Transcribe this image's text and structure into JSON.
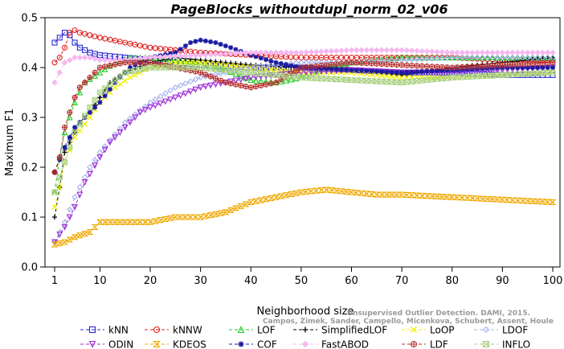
{
  "chart_data": {
    "type": "line",
    "title": "PageBlocks_withoutdupl_norm_02_v06",
    "xlabel": "Neighborhood size",
    "ylabel": "Maximum F1",
    "xlim": [
      1,
      100
    ],
    "ylim": [
      0.0,
      0.5
    ],
    "x_ticks": [
      1,
      10,
      20,
      30,
      40,
      50,
      60,
      70,
      80,
      90,
      100
    ],
    "y_ticks": [
      0.0,
      0.1,
      0.2,
      0.3,
      0.4,
      0.5
    ],
    "y_tick_labels": [
      "0.0",
      "0.1",
      "0.2",
      "0.3",
      "0.4",
      "0.5"
    ],
    "grid": false,
    "legend_position": "bottom",
    "series": [
      {
        "name": "kNN",
        "color": "#2b2bd6",
        "marker": "square",
        "dash": "4,3",
        "points": [
          [
            1,
            0.45
          ],
          [
            2,
            0.46
          ],
          [
            3,
            0.47
          ],
          [
            4,
            0.465
          ],
          [
            5,
            0.45
          ],
          [
            6,
            0.44
          ],
          [
            8,
            0.43
          ],
          [
            10,
            0.425
          ],
          [
            15,
            0.42
          ],
          [
            20,
            0.415
          ],
          [
            25,
            0.41
          ],
          [
            30,
            0.405
          ],
          [
            40,
            0.4
          ],
          [
            50,
            0.4
          ],
          [
            60,
            0.395
          ],
          [
            70,
            0.39
          ],
          [
            80,
            0.39
          ],
          [
            90,
            0.385
          ],
          [
            100,
            0.385
          ]
        ]
      },
      {
        "name": "kNNW",
        "color": "#e02020",
        "marker": "circle",
        "dash": "4,3",
        "points": [
          [
            1,
            0.41
          ],
          [
            2,
            0.42
          ],
          [
            3,
            0.44
          ],
          [
            4,
            0.47
          ],
          [
            5,
            0.475
          ],
          [
            6,
            0.47
          ],
          [
            8,
            0.465
          ],
          [
            10,
            0.46
          ],
          [
            15,
            0.45
          ],
          [
            20,
            0.44
          ],
          [
            25,
            0.435
          ],
          [
            30,
            0.43
          ],
          [
            40,
            0.425
          ],
          [
            50,
            0.42
          ],
          [
            60,
            0.42
          ],
          [
            70,
            0.42
          ],
          [
            80,
            0.42
          ],
          [
            90,
            0.415
          ],
          [
            100,
            0.415
          ]
        ]
      },
      {
        "name": "LOF",
        "color": "#22cc22",
        "marker": "triangle",
        "dash": "4,3",
        "points": [
          [
            1,
            0.15
          ],
          [
            2,
            0.22
          ],
          [
            3,
            0.27
          ],
          [
            5,
            0.33
          ],
          [
            7,
            0.37
          ],
          [
            10,
            0.39
          ],
          [
            13,
            0.41
          ],
          [
            16,
            0.42
          ],
          [
            20,
            0.42
          ],
          [
            25,
            0.415
          ],
          [
            30,
            0.41
          ],
          [
            35,
            0.395
          ],
          [
            40,
            0.375
          ],
          [
            45,
            0.37
          ],
          [
            50,
            0.38
          ],
          [
            55,
            0.4
          ],
          [
            60,
            0.41
          ],
          [
            70,
            0.42
          ],
          [
            80,
            0.42
          ],
          [
            90,
            0.42
          ],
          [
            100,
            0.42
          ]
        ]
      },
      {
        "name": "SimplifiedLOF",
        "color": "#000000",
        "marker": "plus",
        "dash": "4,3",
        "points": [
          [
            1,
            0.1
          ],
          [
            2,
            0.16
          ],
          [
            3,
            0.23
          ],
          [
            4,
            0.25
          ],
          [
            6,
            0.29
          ],
          [
            8,
            0.31
          ],
          [
            10,
            0.34
          ],
          [
            12,
            0.37
          ],
          [
            15,
            0.39
          ],
          [
            20,
            0.41
          ],
          [
            25,
            0.42
          ],
          [
            30,
            0.415
          ],
          [
            35,
            0.41
          ],
          [
            40,
            0.405
          ],
          [
            50,
            0.4
          ],
          [
            55,
            0.4
          ],
          [
            60,
            0.395
          ],
          [
            65,
            0.39
          ],
          [
            70,
            0.385
          ],
          [
            80,
            0.4
          ],
          [
            90,
            0.41
          ],
          [
            100,
            0.42
          ]
        ]
      },
      {
        "name": "LoOP",
        "color": "#f0f000",
        "marker": "cross",
        "dash": "4,3",
        "points": [
          [
            1,
            0.12
          ],
          [
            2,
            0.16
          ],
          [
            3,
            0.21
          ],
          [
            5,
            0.26
          ],
          [
            8,
            0.3
          ],
          [
            10,
            0.33
          ],
          [
            13,
            0.36
          ],
          [
            16,
            0.38
          ],
          [
            20,
            0.4
          ],
          [
            25,
            0.41
          ],
          [
            30,
            0.41
          ],
          [
            40,
            0.4
          ],
          [
            50,
            0.39
          ],
          [
            60,
            0.39
          ],
          [
            70,
            0.38
          ],
          [
            80,
            0.38
          ],
          [
            90,
            0.385
          ],
          [
            100,
            0.39
          ]
        ]
      },
      {
        "name": "LDOF",
        "color": "#aab4f0",
        "marker": "diamond",
        "dash": "4,3",
        "points": [
          [
            1,
            0.05
          ],
          [
            3,
            0.09
          ],
          [
            5,
            0.14
          ],
          [
            8,
            0.2
          ],
          [
            10,
            0.23
          ],
          [
            15,
            0.29
          ],
          [
            20,
            0.33
          ],
          [
            25,
            0.36
          ],
          [
            30,
            0.38
          ],
          [
            35,
            0.39
          ],
          [
            40,
            0.4
          ],
          [
            50,
            0.41
          ],
          [
            60,
            0.41
          ],
          [
            70,
            0.415
          ],
          [
            80,
            0.42
          ],
          [
            90,
            0.42
          ],
          [
            100,
            0.42
          ]
        ]
      },
      {
        "name": "ODIN",
        "color": "#9a2ad6",
        "marker": "triangle-down",
        "dash": "4,3",
        "points": [
          [
            1,
            0.05
          ],
          [
            3,
            0.08
          ],
          [
            5,
            0.12
          ],
          [
            7,
            0.17
          ],
          [
            10,
            0.22
          ],
          [
            12,
            0.25
          ],
          [
            15,
            0.28
          ],
          [
            18,
            0.31
          ],
          [
            20,
            0.32
          ],
          [
            25,
            0.34
          ],
          [
            30,
            0.36
          ],
          [
            35,
            0.37
          ],
          [
            40,
            0.38
          ],
          [
            50,
            0.39
          ],
          [
            60,
            0.395
          ],
          [
            70,
            0.39
          ],
          [
            80,
            0.39
          ],
          [
            90,
            0.395
          ],
          [
            100,
            0.4
          ]
        ]
      },
      {
        "name": "KDEOS",
        "color": "#f0a800",
        "marker": "hourglass",
        "dash": "4,3",
        "points": [
          [
            1,
            0.045
          ],
          [
            3,
            0.05
          ],
          [
            5,
            0.06
          ],
          [
            8,
            0.07
          ],
          [
            10,
            0.09
          ],
          [
            15,
            0.09
          ],
          [
            20,
            0.09
          ],
          [
            25,
            0.1
          ],
          [
            30,
            0.1
          ],
          [
            35,
            0.11
          ],
          [
            40,
            0.13
          ],
          [
            45,
            0.14
          ],
          [
            50,
            0.15
          ],
          [
            55,
            0.155
          ],
          [
            60,
            0.15
          ],
          [
            65,
            0.145
          ],
          [
            70,
            0.145
          ],
          [
            80,
            0.14
          ],
          [
            90,
            0.135
          ],
          [
            100,
            0.13
          ]
        ]
      },
      {
        "name": "COF",
        "color": "#1a1aa0",
        "marker": "star",
        "dash": "4,3",
        "points": [
          [
            1,
            0.19
          ],
          [
            3,
            0.24
          ],
          [
            5,
            0.28
          ],
          [
            7,
            0.3
          ],
          [
            10,
            0.33
          ],
          [
            13,
            0.37
          ],
          [
            16,
            0.4
          ],
          [
            20,
            0.42
          ],
          [
            25,
            0.43
          ],
          [
            28,
            0.45
          ],
          [
            30,
            0.455
          ],
          [
            33,
            0.45
          ],
          [
            36,
            0.44
          ],
          [
            40,
            0.425
          ],
          [
            45,
            0.41
          ],
          [
            50,
            0.4
          ],
          [
            60,
            0.395
          ],
          [
            70,
            0.39
          ],
          [
            80,
            0.395
          ],
          [
            90,
            0.4
          ],
          [
            100,
            0.4
          ]
        ]
      },
      {
        "name": "FastABOD",
        "color": "#f5b8f0",
        "marker": "diamond-filled",
        "dash": "4,3",
        "points": [
          [
            1,
            0.37
          ],
          [
            3,
            0.41
          ],
          [
            5,
            0.42
          ],
          [
            8,
            0.42
          ],
          [
            10,
            0.415
          ],
          [
            15,
            0.415
          ],
          [
            20,
            0.42
          ],
          [
            30,
            0.425
          ],
          [
            40,
            0.43
          ],
          [
            50,
            0.43
          ],
          [
            60,
            0.435
          ],
          [
            70,
            0.435
          ],
          [
            80,
            0.43
          ],
          [
            90,
            0.43
          ],
          [
            100,
            0.43
          ]
        ]
      },
      {
        "name": "LDF",
        "color": "#b83030",
        "marker": "circle-plus",
        "dash": "4,3",
        "points": [
          [
            1,
            0.19
          ],
          [
            2,
            0.22
          ],
          [
            3,
            0.28
          ],
          [
            4,
            0.31
          ],
          [
            5,
            0.34
          ],
          [
            6,
            0.36
          ],
          [
            8,
            0.38
          ],
          [
            10,
            0.4
          ],
          [
            15,
            0.41
          ],
          [
            20,
            0.41
          ],
          [
            25,
            0.4
          ],
          [
            30,
            0.39
          ],
          [
            35,
            0.37
          ],
          [
            40,
            0.36
          ],
          [
            45,
            0.37
          ],
          [
            50,
            0.4
          ],
          [
            60,
            0.41
          ],
          [
            70,
            0.405
          ],
          [
            80,
            0.4
          ],
          [
            90,
            0.405
          ],
          [
            100,
            0.41
          ]
        ]
      },
      {
        "name": "INFLO",
        "color": "#a8d080",
        "marker": "square-x",
        "dash": "4,3",
        "points": [
          [
            1,
            0.15
          ],
          [
            3,
            0.21
          ],
          [
            5,
            0.27
          ],
          [
            8,
            0.32
          ],
          [
            10,
            0.35
          ],
          [
            15,
            0.39
          ],
          [
            20,
            0.4
          ],
          [
            30,
            0.4
          ],
          [
            40,
            0.39
          ],
          [
            50,
            0.38
          ],
          [
            60,
            0.375
          ],
          [
            70,
            0.37
          ],
          [
            80,
            0.38
          ],
          [
            90,
            0.385
          ],
          [
            100,
            0.39
          ]
        ]
      }
    ]
  },
  "watermark": {
    "line1": "Unsupervised Outlier Detection. DAMI, 2015.",
    "line2": "Campos, Zimek, Sander, Campello, Micenkova, Schubert, Assent, Houle"
  }
}
